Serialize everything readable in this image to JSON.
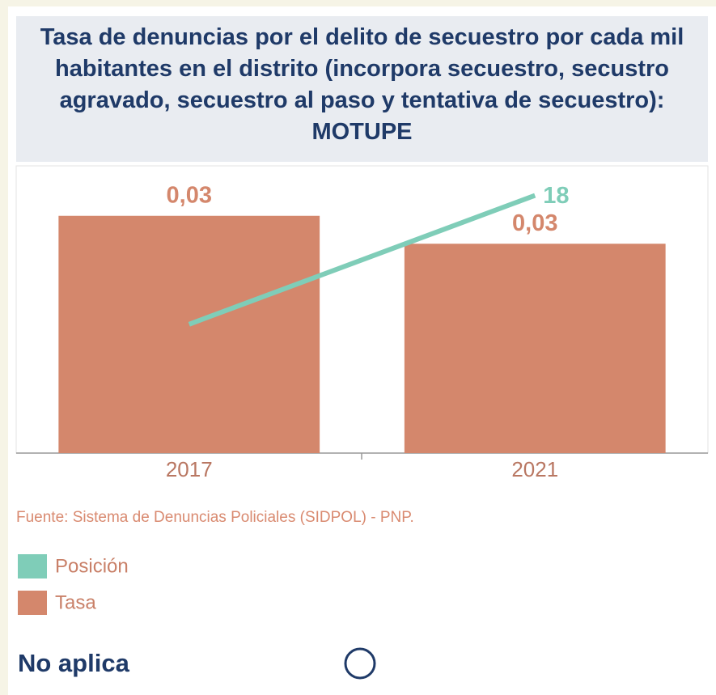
{
  "chart_data": {
    "type": "bar",
    "title": "Tasa de denuncias por el delito de secuestro por cada mil habitantes en el distrito (incorpora secuestro, secustro agravado, secuestro al paso y tentativa de secuestro): MOTUPE",
    "categories": [
      "2017",
      "2021"
    ],
    "series": [
      {
        "name": "Posición",
        "type": "line",
        "axis": "y2",
        "color": "#7fcdb8",
        "values": [
          9,
          18
        ],
        "value_labels": [
          null,
          "18"
        ]
      },
      {
        "name": "Tasa",
        "type": "bar",
        "color": "#d4876c",
        "values": [
          0.034,
          0.03
        ],
        "value_labels": [
          "0,03",
          "0,03"
        ]
      }
    ],
    "ylim": [
      0,
      0.04
    ],
    "y2lim": [
      0,
      19.5
    ],
    "source": "Fuente: Sistema de Denuncias Policiales (SIDPOL) - PNP.",
    "status": "No aplica"
  }
}
